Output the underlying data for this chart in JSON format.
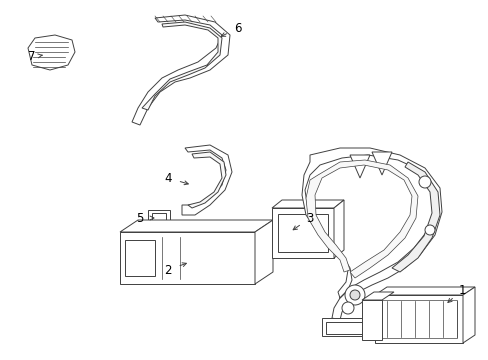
{
  "bg_color": "#ffffff",
  "line_color": "#404040",
  "label_color": "#000000",
  "fig_width": 4.89,
  "fig_height": 3.6,
  "dpi": 100
}
